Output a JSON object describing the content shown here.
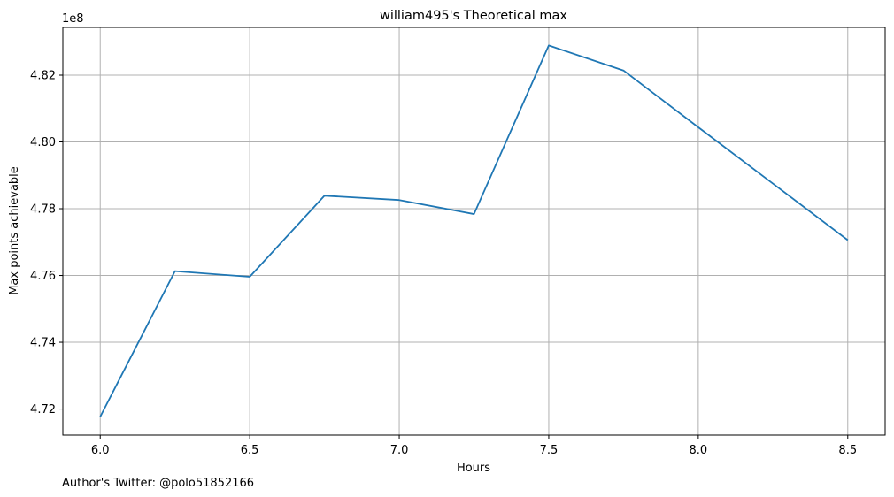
{
  "chart_data": {
    "type": "line",
    "title": "william495's Theoretical max",
    "xlabel": "Hours",
    "ylabel": "Max points achievable",
    "y_offset_label": "1e8",
    "footnote": "Author's Twitter: @polo51852166",
    "grid": true,
    "xlim": [
      5.875,
      8.625
    ],
    "ylim": [
      4.7122,
      4.8343
    ],
    "x_ticks": [
      6.0,
      6.5,
      7.0,
      7.5,
      8.0,
      8.5
    ],
    "x_tick_labels": [
      "6.0",
      "6.5",
      "7.0",
      "7.5",
      "8.0",
      "8.5"
    ],
    "y_ticks": [
      4.72,
      4.74,
      4.76,
      4.78,
      4.8,
      4.82
    ],
    "y_tick_labels": [
      "4.72",
      "4.74",
      "4.76",
      "4.78",
      "4.80",
      "4.82"
    ],
    "series": [
      {
        "color": "#1f77b4",
        "x": [
          6.0,
          6.25,
          6.5,
          6.75,
          7.0,
          7.25,
          7.5,
          7.75,
          8.0,
          8.25,
          8.5
        ],
        "y": [
          4.7177,
          4.7613,
          4.7596,
          4.7839,
          4.7826,
          4.7784,
          4.8289,
          4.8214,
          4.8044,
          4.7875,
          4.7706
        ]
      }
    ]
  }
}
